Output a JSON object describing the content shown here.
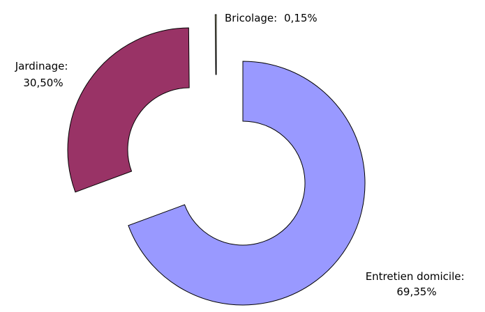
{
  "chart_data": {
    "type": "donut",
    "categories": [
      "Entretien domicile:",
      "Jardinage:",
      "Bricolage:"
    ],
    "values": [
      69.35,
      30.5,
      0.15
    ],
    "value_labels": [
      "69,35%",
      "30,50%",
      "0,15%"
    ],
    "colors": [
      "#9999ff",
      "#993366",
      "#ffffcc"
    ]
  }
}
